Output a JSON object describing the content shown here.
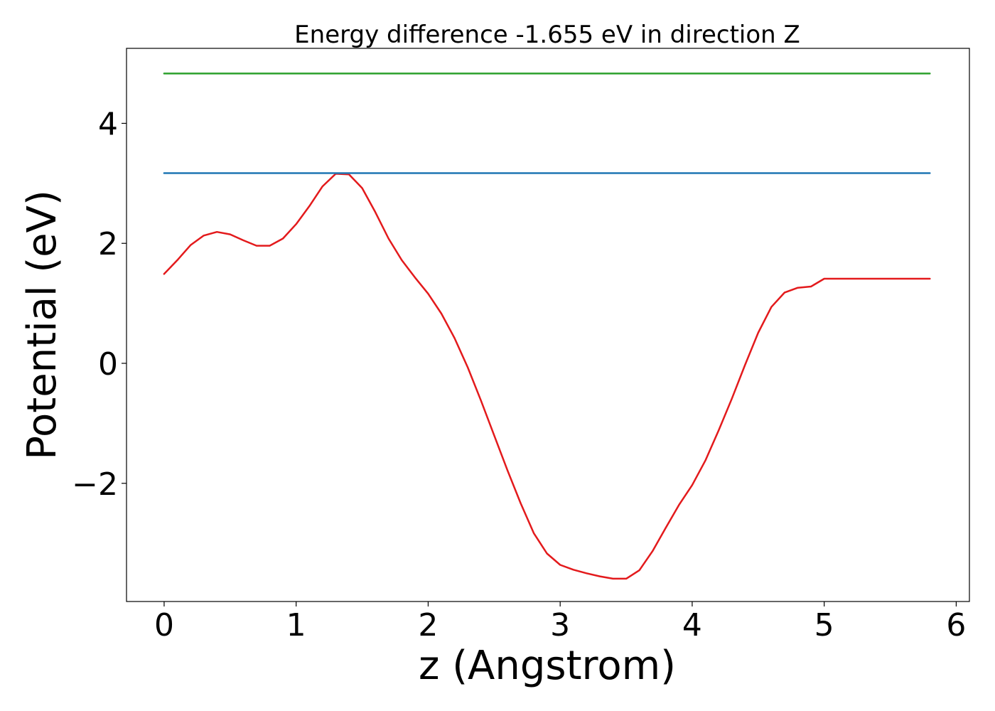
{
  "chart_data": {
    "type": "line",
    "title": "Energy difference -1.655 eV in direction Z",
    "xlabel": "z (Angstrom)",
    "ylabel": "Potential (eV)",
    "xlim": [
      -0.285,
      6.1
    ],
    "ylim": [
      -3.97,
      5.25
    ],
    "x_ticks": [
      0,
      1,
      2,
      3,
      4,
      5,
      6
    ],
    "x_tick_labels": [
      "0",
      "1",
      "2",
      "3",
      "4",
      "5",
      "6"
    ],
    "y_ticks": [
      -2,
      0,
      2,
      4
    ],
    "y_tick_labels": [
      "−2",
      "0",
      "2",
      "4"
    ],
    "grid": false,
    "legend": "none",
    "series": [
      {
        "color": "#e31a1c",
        "x": [
          0,
          0.1,
          0.2,
          0.3,
          0.4,
          0.5,
          0.6,
          0.7,
          0.8,
          0.9,
          1.0,
          1.1,
          1.2,
          1.3,
          1.4,
          1.5,
          1.6,
          1.7,
          1.8,
          1.9,
          2.0,
          2.1,
          2.2,
          2.3,
          2.4,
          2.5,
          2.6,
          2.7,
          2.8,
          2.9,
          3.0,
          3.1,
          3.2,
          3.3,
          3.4,
          3.5,
          3.6,
          3.7,
          3.8,
          3.9,
          4.0,
          4.1,
          4.2,
          4.3,
          4.4,
          4.5,
          4.6,
          4.7,
          4.8,
          4.9,
          5.0,
          5.1,
          5.2,
          5.3,
          5.4,
          5.5,
          5.6,
          5.7,
          5.8
        ],
        "y": [
          1.49,
          1.72,
          1.97,
          2.13,
          2.19,
          2.15,
          2.05,
          1.96,
          1.96,
          2.08,
          2.32,
          2.62,
          2.95,
          3.16,
          3.15,
          2.92,
          2.52,
          2.08,
          1.72,
          1.43,
          1.16,
          0.83,
          0.42,
          -0.07,
          -0.62,
          -1.2,
          -1.78,
          -2.33,
          -2.83,
          -3.17,
          -3.36,
          -3.44,
          -3.5,
          -3.55,
          -3.59,
          -3.59,
          -3.45,
          -3.13,
          -2.74,
          -2.36,
          -2.03,
          -1.62,
          -1.12,
          -0.59,
          -0.03,
          0.51,
          0.94,
          1.18,
          1.26,
          1.28,
          1.41,
          1.41,
          1.41,
          1.41,
          1.41,
          1.41,
          1.41,
          1.41,
          1.41
        ]
      },
      {
        "color": "#1f77b4",
        "x": [
          0,
          5.8
        ],
        "y": [
          3.17,
          3.17
        ]
      },
      {
        "color": "#2ca02c",
        "x": [
          0,
          5.8
        ],
        "y": [
          4.83,
          4.83
        ]
      }
    ]
  }
}
